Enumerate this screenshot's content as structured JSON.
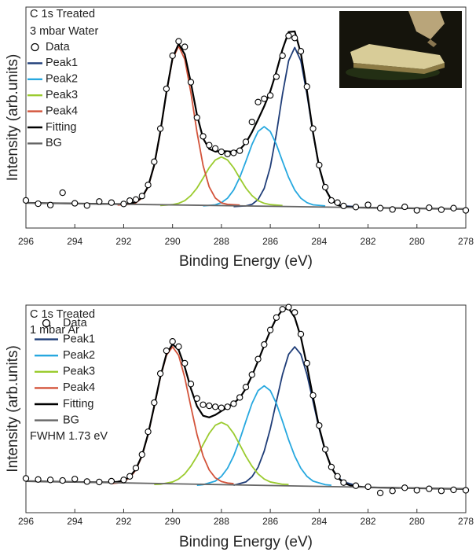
{
  "chart_data": [
    {
      "type": "line",
      "title": "C 1s Treated",
      "subtitle": "3 mbar Water",
      "x_label": "Binding Energy (eV)",
      "y_label": "Intensity (arb.units)",
      "xlim": [
        296,
        278
      ],
      "xticks": [
        296,
        294,
        292,
        290,
        288,
        286,
        284,
        282,
        280,
        278
      ],
      "ylim": [
        0,
        100
      ],
      "grid": false,
      "series": [
        {
          "name": "Data",
          "color": "#000000",
          "marker": "circle",
          "x": [
            296,
            295.5,
            295,
            294.5,
            294,
            293.5,
            293,
            292.5,
            292,
            291.75,
            291.5,
            291.25,
            291,
            290.75,
            290.5,
            290.25,
            290,
            289.75,
            289.5,
            289.25,
            289,
            288.75,
            288.5,
            288.25,
            288,
            287.75,
            287.5,
            287.25,
            287,
            286.75,
            286.5,
            286.25,
            286,
            285.75,
            285.5,
            285.25,
            285,
            284.75,
            284.5,
            284.25,
            284,
            283.75,
            283.5,
            283.25,
            283,
            282.5,
            282,
            281.5,
            281,
            280.5,
            280,
            279.5,
            279,
            278.5,
            278
          ],
          "values": [
            12.5,
            11.0,
            10.4,
            16.0,
            11.2,
            10.2,
            12.0,
            11.5,
            10.9,
            12.4,
            12.9,
            14.5,
            19.5,
            30.0,
            45.0,
            63.0,
            78.0,
            84.5,
            82.0,
            66.0,
            50.0,
            41.5,
            37.5,
            36.0,
            34.5,
            33.5,
            34.0,
            35.0,
            39.0,
            48.0,
            57.0,
            58.5,
            60.0,
            68.5,
            78.0,
            87.0,
            86.0,
            80.0,
            64.0,
            45.0,
            28.5,
            18.5,
            12.5,
            11.5,
            10.0,
            9.5,
            10.5,
            9.0,
            8.4,
            9.6,
            8.0,
            9.2,
            8.3,
            9.0,
            8.0
          ]
        },
        {
          "name": "Peak1",
          "color": "#1f3d78",
          "x": [
            287.5,
            287,
            286.75,
            286.5,
            286.25,
            286,
            285.75,
            285.5,
            285.25,
            285,
            284.75,
            284.5,
            284.25,
            284,
            283.75,
            283.5,
            283.25,
            283,
            282.5
          ],
          "values": [
            9.7,
            10.0,
            10.7,
            12.9,
            17.9,
            27.6,
            42.7,
            60.6,
            75.7,
            81.7,
            75.7,
            60.6,
            42.7,
            27.6,
            17.9,
            12.9,
            10.7,
            10.0,
            9.7
          ]
        },
        {
          "name": "Peak2",
          "color": "#27a8df",
          "x": [
            288.75,
            288.25,
            288,
            287.75,
            287.5,
            287.25,
            287,
            286.75,
            286.5,
            286.25,
            286,
            285.75,
            285.5,
            285.25,
            285,
            284.75,
            284.5,
            284.25,
            283.75
          ],
          "values": [
            10.0,
            10.5,
            11.5,
            13.5,
            17.2,
            22.9,
            30.2,
            37.8,
            43.7,
            45.9,
            43.7,
            37.8,
            30.2,
            22.9,
            17.2,
            13.5,
            11.5,
            10.5,
            10.0
          ]
        },
        {
          "name": "Peak3",
          "color": "#9bcb2f",
          "x": [
            290.5,
            290,
            289.75,
            289.5,
            289.25,
            289,
            288.75,
            288.5,
            288.25,
            288,
            287.75,
            287.5,
            287.25,
            287,
            286.75,
            286.5,
            286.25,
            286,
            285.5
          ],
          "values": [
            10.2,
            10.6,
            11.2,
            12.4,
            14.7,
            18.1,
            22.6,
            27.3,
            30.8,
            32.2,
            30.8,
            27.3,
            22.6,
            18.1,
            14.7,
            12.4,
            11.2,
            10.6,
            10.2
          ]
        },
        {
          "name": "Peak4",
          "color": "#d3533a",
          "x": [
            292.25,
            291.75,
            291.5,
            291.25,
            291,
            290.75,
            290.5,
            290.25,
            290,
            289.75,
            289.5,
            289.25,
            289,
            288.75,
            288.5,
            288.25,
            288,
            287.75,
            287.25
          ],
          "values": [
            10.4,
            10.7,
            11.4,
            13.6,
            18.6,
            28.3,
            43.4,
            61.3,
            76.4,
            82.4,
            76.4,
            61.3,
            43.4,
            28.3,
            18.6,
            13.6,
            11.4,
            10.7,
            10.4
          ]
        },
        {
          "name": "Fitting",
          "color": "#000000",
          "x": [
            296,
            294,
            292,
            291.75,
            291.5,
            291.25,
            291,
            290.75,
            290.5,
            290.25,
            290,
            289.75,
            289.5,
            289.25,
            289,
            288.75,
            288.5,
            288.25,
            288,
            287.75,
            287.5,
            287.25,
            287,
            286.75,
            286.5,
            286.25,
            286,
            285.75,
            285.5,
            285.25,
            285,
            284.75,
            284.5,
            284.25,
            284,
            283.75,
            283.5,
            283.25,
            283,
            282.5,
            282,
            280,
            278
          ],
          "values": [
            11.4,
            11.1,
            10.8,
            11.1,
            11.7,
            13.9,
            18.8,
            28.5,
            43.6,
            61.5,
            76.9,
            83.4,
            78.6,
            65.8,
            51.2,
            40.6,
            35.8,
            34.6,
            34.8,
            34.7,
            34.5,
            35.5,
            38.5,
            43.4,
            49.1,
            55.1,
            61.9,
            70.8,
            80.9,
            88.7,
            89.0,
            79.2,
            62.1,
            43.2,
            27.6,
            17.7,
            12.7,
            10.4,
            9.7,
            9.3,
            9.2,
            8.9,
            8.6
          ]
        },
        {
          "name": "BG",
          "color": "#666666",
          "x": [
            296,
            278
          ],
          "values": [
            11.4,
            8.6
          ]
        }
      ]
    },
    {
      "type": "line",
      "title": "C 1s Treated",
      "subtitle": "1 mbar Ar",
      "annotation": "FWHM 1.73 eV",
      "x_label": "Binding Energy (eV)",
      "y_label": "Intensity (arb.units)",
      "xlim": [
        296,
        278
      ],
      "xticks": [
        296,
        294,
        292,
        290,
        288,
        286,
        284,
        282,
        280,
        278
      ],
      "ylim": [
        0,
        100
      ],
      "grid": false,
      "series": [
        {
          "name": "Data",
          "color": "#000000",
          "marker": "circle",
          "x": [
            296,
            295.5,
            295,
            294.5,
            294,
            293.5,
            293,
            292.5,
            292,
            291.75,
            291.5,
            291.25,
            291,
            290.75,
            290.5,
            290.25,
            290,
            289.75,
            289.5,
            289.25,
            289,
            288.75,
            288.5,
            288.25,
            288,
            287.75,
            287.5,
            287.25,
            287,
            286.75,
            286.5,
            286.25,
            286,
            285.75,
            285.5,
            285.25,
            285,
            284.75,
            284.5,
            284.25,
            284,
            283.75,
            283.5,
            283.25,
            283,
            282.5,
            282,
            281.5,
            281,
            280.5,
            280,
            279.5,
            279,
            278.5,
            278
          ],
          "values": [
            16.5,
            16.0,
            15.8,
            15.5,
            16.2,
            15.0,
            14.8,
            15.2,
            15.8,
            17.5,
            21.5,
            28.0,
            39.0,
            53.0,
            67.0,
            78.0,
            82.5,
            80.0,
            72.0,
            62.0,
            55.0,
            52.0,
            51.5,
            51.0,
            50.5,
            51.0,
            52.5,
            55.5,
            60.5,
            66.5,
            74.0,
            81.0,
            88.0,
            94.0,
            98.0,
            99.0,
            96.5,
            86.0,
            72.0,
            56.5,
            42.0,
            30.5,
            22.0,
            17.5,
            14.5,
            13.0,
            12.5,
            9.5,
            10.5,
            12.0,
            10.8,
            11.5,
            10.5,
            11.0,
            10.8
          ]
        },
        {
          "name": "Peak1",
          "color": "#1f3d78",
          "x": [
            287.5,
            287,
            286.75,
            286.5,
            286.25,
            286,
            285.75,
            285.5,
            285.25,
            285,
            284.75,
            284.5,
            284.25,
            284,
            283.75,
            283.5,
            283.25,
            283,
            282.5
          ],
          "values": [
            13.2,
            14.8,
            17.3,
            21.9,
            29.6,
            40.4,
            53.6,
            66.6,
            76.3,
            79.9,
            76.3,
            66.6,
            53.6,
            40.4,
            29.6,
            21.9,
            17.3,
            14.8,
            13.2
          ]
        },
        {
          "name": "Peak2",
          "color": "#27a8df",
          "x": [
            289,
            288.75,
            288.25,
            288,
            287.75,
            287.5,
            287.25,
            287,
            286.75,
            286.5,
            286.25,
            286,
            285.75,
            285.5,
            285.25,
            285,
            284.75,
            284.5,
            284.25,
            283.75,
            283.5
          ],
          "values": [
            13.2,
            13.5,
            15.2,
            17.5,
            21.4,
            27.3,
            35.1,
            44.0,
            52.6,
            58.8,
            61.1,
            58.8,
            52.6,
            44.0,
            35.1,
            27.3,
            21.4,
            17.5,
            15.2,
            13.5,
            13.2
          ]
        },
        {
          "name": "Peak3",
          "color": "#9bcb2f",
          "x": [
            290.75,
            290.5,
            290,
            289.75,
            289.5,
            289.25,
            289,
            288.75,
            288.5,
            288.25,
            288,
            287.75,
            287.5,
            287.25,
            287,
            286.75,
            286.5,
            286.25,
            286,
            285.5,
            285.25
          ],
          "values": [
            13.6,
            13.7,
            14.8,
            16.2,
            18.7,
            22.4,
            27.2,
            32.8,
            38.2,
            42.1,
            43.5,
            42.1,
            38.2,
            32.8,
            27.2,
            22.4,
            18.7,
            16.2,
            14.8,
            13.7,
            13.6
          ]
        },
        {
          "name": "Peak4",
          "color": "#d3533a",
          "x": [
            292.5,
            292.25,
            292,
            291.75,
            291.5,
            291.25,
            291,
            290.75,
            290.5,
            290.25,
            290,
            289.75,
            289.5,
            289.25,
            289,
            288.75,
            288.5,
            288.25,
            288,
            287.75,
            287.5
          ],
          "values": [
            14.0,
            14.3,
            15.0,
            16.8,
            20.6,
            27.3,
            37.7,
            51.1,
            65.1,
            75.8,
            79.9,
            75.8,
            65.1,
            51.1,
            37.7,
            27.3,
            20.6,
            16.8,
            15.0,
            14.3,
            14.0
          ]
        },
        {
          "name": "Fitting",
          "color": "#000000",
          "x": [
            296,
            294,
            292.5,
            292.25,
            292,
            291.75,
            291.5,
            291.25,
            291,
            290.75,
            290.5,
            290.25,
            290,
            289.75,
            289.5,
            289.25,
            289,
            288.75,
            288.5,
            288.25,
            288,
            287.75,
            287.5,
            287.25,
            287,
            286.75,
            286.5,
            286.25,
            286,
            285.75,
            285.5,
            285.25,
            285,
            284.75,
            284.5,
            284.25,
            284,
            283.75,
            283.5,
            283.25,
            283,
            282.75,
            282.5,
            282,
            280,
            278
          ],
          "values": [
            15.2,
            14.8,
            14.6,
            14.9,
            15.5,
            17.3,
            21.0,
            27.6,
            37.9,
            51.3,
            65.4,
            76.4,
            81.2,
            78.4,
            70.2,
            59.8,
            51.3,
            46.7,
            45.9,
            47.1,
            49.0,
            50.8,
            52.7,
            55.3,
            59.8,
            66.0,
            73.1,
            80.5,
            87.6,
            93.8,
            97.8,
            98.5,
            94.1,
            84.6,
            70.9,
            55.6,
            41.1,
            29.8,
            21.7,
            17.0,
            14.4,
            13.2,
            12.7,
            12.2,
            11.8,
            11.4
          ]
        },
        {
          "name": "BG",
          "color": "#666666",
          "x": [
            296,
            278
          ],
          "values": [
            15.2,
            11.4
          ]
        }
      ]
    }
  ]
}
